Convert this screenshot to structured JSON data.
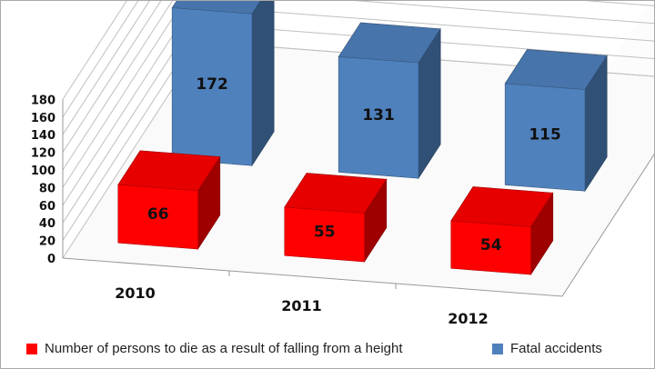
{
  "chart_data": {
    "type": "bar",
    "style": "3d-clustered-column",
    "categories": [
      "2010",
      "2011",
      "2012"
    ],
    "series": [
      {
        "name": "Number of persons to die as a result of falling from a height",
        "values": [
          66,
          55,
          54
        ],
        "color": "#ff0000"
      },
      {
        "name": "Fatal accidents",
        "values": [
          172,
          131,
          115
        ],
        "color": "#4f81bd"
      }
    ],
    "ylim": [
      0,
      180
    ],
    "yticks": [
      0,
      20,
      40,
      60,
      80,
      100,
      120,
      140,
      160,
      180
    ],
    "grid": true,
    "legend_position": "bottom",
    "data_labels": true
  }
}
